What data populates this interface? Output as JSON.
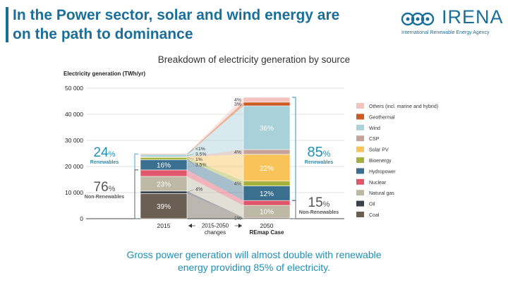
{
  "header": {
    "title_line1": "In the Power sector, solar and wind energy are",
    "title_line2": "on the path to dominance"
  },
  "logo": {
    "wordmark": "IRENA",
    "subtitle": "International Renewable Energy Agency",
    "icon": "irena-logo-icon",
    "brand_color": "#1a6f9a"
  },
  "footnote": {
    "line1": "Gross power generation will almost double with renewable",
    "line2": "energy providing 85% of electricity."
  },
  "chart_data": {
    "type": "bar",
    "subtype": "stacked-with-transition-band",
    "title": "Breakdown of electricity generation by source",
    "ylabel": "Electricity generation (TWh/yr)",
    "ylim": [
      0,
      50000
    ],
    "yticks": [
      0,
      10000,
      20000,
      30000,
      40000,
      50000
    ],
    "ytick_labels": [
      "0",
      "10 000",
      "20 000",
      "30 000",
      "40 000",
      "50 000"
    ],
    "grid": true,
    "legend_position": "right",
    "categories": [
      "2015",
      "2050"
    ],
    "category_labels": [
      {
        "text": "2015"
      },
      {
        "text": "2015-2050",
        "text2": "changes"
      },
      {
        "text": "2050",
        "text2": "REmap Case"
      }
    ],
    "totals": [
      24500,
      46500
    ],
    "series": [
      {
        "name": "Coal",
        "color": "#6b5e52",
        "values": [
          9600,
          460
        ],
        "labels": [
          "39%",
          ""
        ],
        "label_dark": false
      },
      {
        "name": "Oil",
        "color": "#39414a",
        "values": [
          980,
          0
        ],
        "labels": [
          "4%",
          ""
        ],
        "label_dark": false
      },
      {
        "name": "Natural gas",
        "color": "#bdb9a4",
        "values": [
          5640,
          4650
        ],
        "labels": [
          "23%",
          "10%"
        ],
        "label_dark": false
      },
      {
        "name": "Nuclear",
        "color": "#e0566a",
        "values": [
          2450,
          1860
        ],
        "labels": [
          "10%",
          "4%"
        ],
        "label_dark": false
      },
      {
        "name": "Hydropower",
        "color": "#3b6f8f",
        "values": [
          3920,
          5580
        ],
        "labels": [
          "16%",
          "12%"
        ],
        "label_dark": false
      },
      {
        "name": "Bioenergy",
        "color": "#a7b23e",
        "values": [
          860,
          1860
        ],
        "labels": [
          "3.5%",
          "4%"
        ],
        "label_dark": true
      },
      {
        "name": "Solar PV",
        "color": "#f8c45a",
        "values": [
          245,
          10230
        ],
        "labels": [
          "1%",
          "22%"
        ],
        "label_dark": false
      },
      {
        "name": "CSP",
        "color": "#c7a49a",
        "values": [
          0,
          1860
        ],
        "labels": [
          "",
          "4%"
        ],
        "label_dark": true
      },
      {
        "name": "Wind",
        "color": "#a8d1da",
        "values": [
          860,
          16740
        ],
        "labels": [
          "3.5%",
          "36%"
        ],
        "label_dark": false
      },
      {
        "name": "Geothermal",
        "color": "#cc5b24",
        "values": [
          245,
          1395
        ],
        "labels": [
          "<1%",
          "3%"
        ],
        "label_dark": true
      },
      {
        "name": "Others (incl. marine and hybrid)",
        "color": "#f3c4bf",
        "values": [
          0,
          1860
        ],
        "labels": [
          "",
          "4%"
        ],
        "label_dark": true
      }
    ],
    "callouts_2015": [
      "<1%",
      "3.5%",
      "1%",
      "3.5%"
    ],
    "callout_oil_2015": "4%",
    "callout_coal_2050": "1%",
    "left_annotations": {
      "renewables_pct": "24",
      "renewables_label": "Renewables",
      "nonrenewables_pct": "76",
      "nonrenewables_label": "Non-Renewables",
      "pct_sign": "%"
    },
    "right_annotations": {
      "renewables_pct": "85",
      "renewables_label": "Renewables",
      "nonrenewables_pct": "15",
      "nonrenewables_label": "Non-Renewables",
      "pct_sign": "%"
    },
    "colors": {
      "renewable_accent": "#1f8fb5",
      "nonrenewable_accent": "#555555",
      "axis_text": "#222222",
      "grid": "#d8d8d8",
      "bracket": "#4fa3c7"
    }
  }
}
